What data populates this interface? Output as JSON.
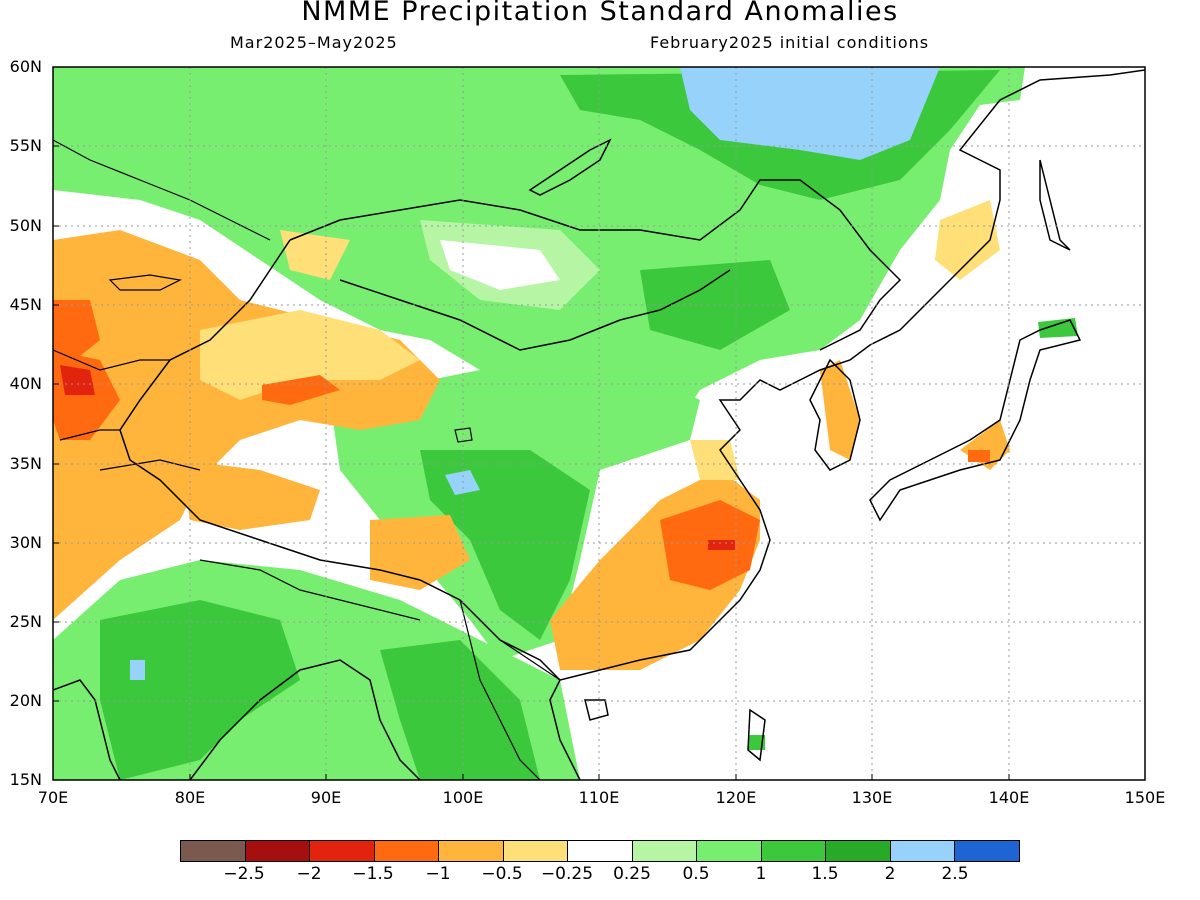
{
  "title": "NMME Precipitation Standard Anomalies",
  "subtitle_left": "Mar2025–May2025",
  "subtitle_right": "February2025 initial conditions",
  "y_labels": [
    "60N",
    "55N",
    "50N",
    "45N",
    "40N",
    "35N",
    "30N",
    "25N",
    "20N",
    "15N"
  ],
  "x_labels": [
    "70E",
    "80E",
    "90E",
    "100E",
    "110E",
    "120E",
    "130E",
    "140E",
    "150E"
  ],
  "colorbar": {
    "colors": [
      "#7a5a4e",
      "#a50f0f",
      "#e2240f",
      "#ff6a10",
      "#ffb43c",
      "#ffe078",
      "#ffffff",
      "#b6f5a4",
      "#78ee70",
      "#3cc83c",
      "#28aa28",
      "#96d2fa",
      "#1e64d2"
    ],
    "labels": [
      "−2.5",
      "−2",
      "−1.5",
      "−1",
      "−0.5",
      "−0.25",
      "0.25",
      "0.5",
      "1",
      "1.5",
      "2",
      "2.5"
    ]
  }
}
